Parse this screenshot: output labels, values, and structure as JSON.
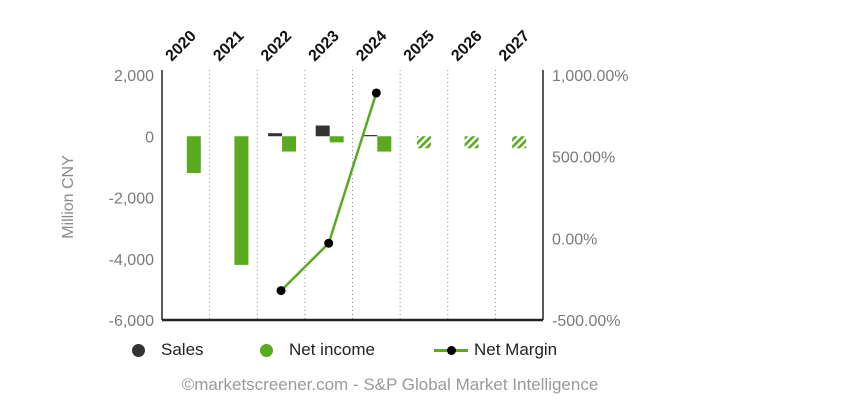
{
  "chart_data": {
    "type": "bar",
    "categories": [
      "2020",
      "2021",
      "2022",
      "2023",
      "2024",
      "2025",
      "2026",
      "2027"
    ],
    "ylabel": "Million CNY",
    "ylim": [
      -6000,
      2000
    ],
    "yticks": [
      "2,000",
      "0",
      "-2,000",
      "-4,000",
      "-6,000"
    ],
    "y2lim": [
      -500,
      1000
    ],
    "y2ticks": [
      "1,000.00%",
      "500.00%",
      "0.00%",
      "-500.00%"
    ],
    "grid": "vertical dotted",
    "legend_position": "bottom",
    "series": [
      {
        "name": "Sales",
        "kind": "bar",
        "axis": "left",
        "color": "#333333",
        "values": [
          null,
          null,
          100,
          350,
          20,
          null,
          null,
          null
        ]
      },
      {
        "name": "Net income",
        "kind": "bar",
        "axis": "left",
        "color": "#5aaa1f",
        "values": [
          -1200,
          -4200,
          -500,
          -200,
          -500,
          null,
          null,
          null
        ],
        "estimate_placeholders": [
          "2025",
          "2026",
          "2027"
        ]
      },
      {
        "name": "Net Margin",
        "kind": "line",
        "axis": "right",
        "color": "#5aaa1f",
        "values": [
          null,
          null,
          -320,
          -30,
          890,
          null,
          null,
          null
        ]
      }
    ]
  },
  "legend": {
    "sales": "Sales",
    "net_income": "Net income",
    "net_margin": "Net Margin"
  },
  "footer": {
    "credit": "©marketscreener.com - S&P Global Market Intelligence"
  }
}
